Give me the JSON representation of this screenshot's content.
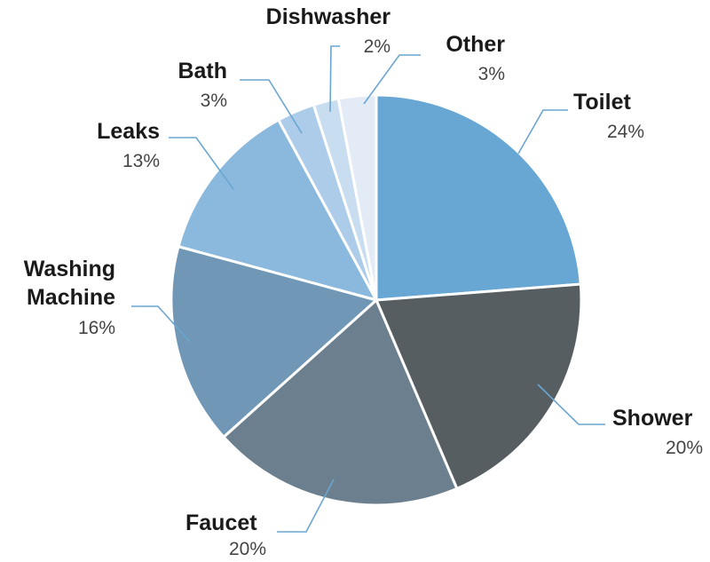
{
  "chart_data": {
    "type": "pie",
    "title": "",
    "slices": [
      {
        "label": "Toilet",
        "value": 24,
        "value_label": "24%",
        "color": "#68a7d3"
      },
      {
        "label": "Shower",
        "value": 20,
        "value_label": "20%",
        "color": "#575e62"
      },
      {
        "label": "Faucet",
        "value": 20,
        "value_label": "20%",
        "color": "#6c7f8e"
      },
      {
        "label": "Washing\nMachine",
        "value": 16,
        "value_label": "16%",
        "color": "#7097b6"
      },
      {
        "label": "Leaks",
        "value": 13,
        "value_label": "13%",
        "color": "#8bb9dd"
      },
      {
        "label": "Bath",
        "value": 3,
        "value_label": "3%",
        "color": "#acccea"
      },
      {
        "label": "Dishwasher",
        "value": 2,
        "value_label": "2%",
        "color": "#c8ddf0"
      },
      {
        "label": "Other",
        "value": 3,
        "value_label": "3%",
        "color": "#e3ecf6"
      }
    ],
    "start": "12 o'clock",
    "direction": "clockwise",
    "legend": "none",
    "labels": "outside with leader lines"
  },
  "colors": {
    "leader_line": "#6aa6d1",
    "label_text": "#1a1a1a",
    "percent_text": "#444444",
    "slice_border": "#ffffff"
  }
}
